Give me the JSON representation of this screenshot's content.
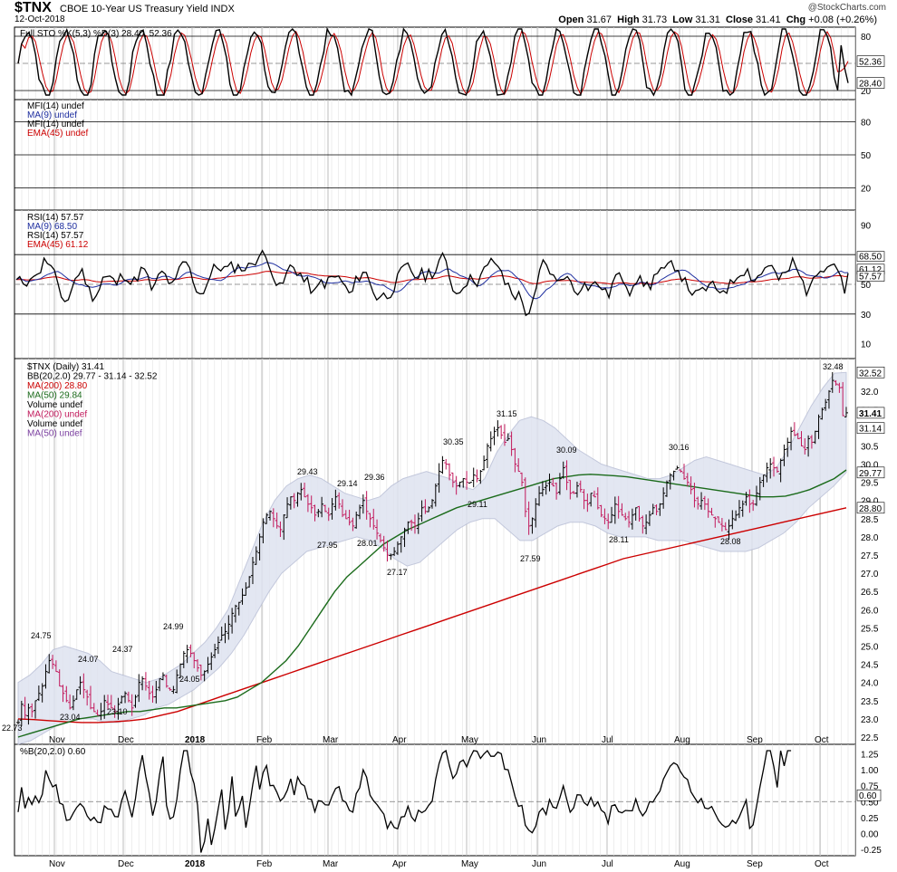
{
  "header": {
    "symbol": "$TNX",
    "name": "CBOE 10-Year US Treasury Yield  INDX",
    "date": "12-Oct-2018",
    "copyright": "@StockCharts.com",
    "open_label": "Open",
    "open": "31.67",
    "high_label": "High",
    "high": "31.73",
    "low_label": "Low",
    "low": "31.31",
    "close_label": "Close",
    "close": "31.41",
    "chg_label": "Chg",
    "chg": "+0.08 (+0.26%)"
  },
  "colors": {
    "grid": "#cfcfcf",
    "price_up": "#000000",
    "price_down": "#c2185b",
    "ma200": "#cc0000",
    "ma50": "#1b6b1b",
    "bb_fill": "#dfe3f0",
    "bb_line": "#b9bfd6",
    "indicator": "#000000",
    "signal_red": "#cc0000",
    "ma9_blue": "#1f2fa0"
  },
  "chart_data": [
    {
      "type": "line",
      "panel": "stochastic",
      "legend": [
        "Full STO %K(5,3) %D(3) 28.40, 52.36"
      ],
      "levels": [
        80,
        20
      ],
      "ylim": [
        10,
        90
      ],
      "last_values": {
        "k": "28.40",
        "d": "52.36"
      },
      "axis_labels": [
        "80",
        "20"
      ]
    },
    {
      "type": "line",
      "panel": "mfi",
      "legend": [
        "MFI(14) undef",
        "MA(9) undef",
        "MFI(14) undef",
        "EMA(45) undef"
      ],
      "levels": [
        80,
        50,
        20
      ],
      "ylim": [
        0,
        100
      ],
      "axis_labels": [
        "80",
        "50",
        "20"
      ]
    },
    {
      "type": "line",
      "panel": "rsi",
      "legend": [
        "RSI(14) 57.57",
        "MA(9) 68.50",
        "RSI(14) 57.57",
        "EMA(45) 61.12"
      ],
      "levels": [
        70,
        50,
        30
      ],
      "ylim": [
        0,
        100
      ],
      "last_values": {
        "ma9": "68.50",
        "ema45": "61.12",
        "rsi": "57.57"
      },
      "axis_labels": [
        "90",
        "70",
        "50",
        "30",
        "10"
      ]
    },
    {
      "type": "ohlc",
      "panel": "price",
      "legend": [
        "$TNX (Daily) 31.41",
        "BB(20,2.0) 29.77 - 31.14 - 32.52",
        "MA(200) 28.80",
        "MA(50) 29.84",
        "Volume undef",
        "MA(200) undef",
        "Volume undef",
        "MA(50) undef"
      ],
      "ylim": [
        22.3,
        32.9
      ],
      "y_ticks": [
        "22.5",
        "23.0",
        "23.5",
        "24.0",
        "24.5",
        "25.0",
        "25.5",
        "26.0",
        "26.5",
        "27.0",
        "27.5",
        "28.0",
        "28.5",
        "29.0",
        "29.5",
        "30.0",
        "30.5",
        "31.0",
        "31.5",
        "32.0"
      ],
      "last_value_tags": {
        "bb_upper": "32.52",
        "close": "31.41",
        "bb_middle": "31.14",
        "bb_lower": "29.77",
        "ma200": "28.80"
      },
      "x_ticks": [
        "Nov",
        "Dec",
        "2018",
        "Feb",
        "Mar",
        "Apr",
        "May",
        "Jun",
        "Jul",
        "Aug",
        "Sep",
        "Oct"
      ],
      "annotations": [
        "22.73",
        "23.04",
        "24.75",
        "24.07",
        "23.10",
        "24.37",
        "24.99",
        "24.05",
        "29.43",
        "27.95",
        "29.14",
        "28.01",
        "29.36",
        "27.17",
        "30.35",
        "29.11",
        "31.15",
        "27.59",
        "30.09",
        "28.11",
        "30.16",
        "28.08",
        "32.48"
      ],
      "close_series": [
        22.9,
        23.4,
        23.1,
        23.3,
        23.2,
        23.5,
        23.7,
        23.9,
        24.3,
        24.6,
        24.5,
        24.3,
        23.9,
        23.7,
        23.5,
        23.3,
        23.5,
        23.8,
        24.0,
        23.8,
        23.6,
        23.3,
        23.2,
        23.1,
        23.2,
        23.5,
        23.4,
        23.3,
        23.2,
        23.4,
        23.6,
        23.7,
        23.5,
        23.3,
        23.6,
        24.0,
        24.1,
        23.9,
        23.7,
        23.6,
        23.8,
        24.1,
        24.2,
        23.9,
        23.8,
        23.8,
        24.2,
        24.5,
        24.8,
        24.9,
        24.8,
        24.6,
        24.4,
        24.2,
        24.3,
        24.5,
        24.7,
        24.9,
        25.1,
        25.3,
        25.4,
        25.6,
        25.9,
        26.1,
        26.2,
        26.4,
        26.6,
        26.9,
        27.3,
        27.6,
        28.0,
        28.4,
        28.6,
        28.7,
        28.5,
        28.3,
        28.2,
        28.6,
        28.9,
        29.1,
        29.0,
        29.2,
        29.3,
        29.1,
        28.9,
        28.8,
        28.6,
        28.7,
        28.9,
        28.7,
        28.6,
        28.9,
        29.1,
        28.9,
        28.6,
        28.5,
        28.4,
        28.3,
        28.6,
        28.8,
        29.0,
        28.7,
        28.5,
        28.3,
        28.1,
        27.9,
        27.7,
        27.5,
        27.5,
        27.6,
        27.8,
        28.0,
        28.2,
        28.4,
        28.4,
        28.3,
        28.5,
        28.8,
        28.7,
        28.8,
        29.0,
        29.4,
        29.8,
        30.1,
        30.0,
        29.7,
        29.5,
        29.4,
        29.5,
        29.6,
        29.5,
        29.5,
        29.7,
        29.6,
        29.8,
        30.1,
        30.5,
        30.7,
        30.9,
        31.0,
        30.8,
        30.6,
        30.7,
        30.4,
        30.0,
        29.8,
        29.5,
        28.7,
        28.3,
        28.5,
        28.9,
        29.2,
        29.3,
        29.4,
        29.5,
        29.4,
        29.2,
        29.6,
        29.9,
        29.5,
        29.2,
        29.2,
        29.4,
        29.3,
        29.0,
        28.9,
        29.2,
        29.1,
        28.8,
        28.6,
        28.5,
        28.4,
        28.6,
        28.9,
        28.7,
        28.6,
        28.5,
        28.4,
        28.6,
        28.8,
        28.5,
        28.3,
        28.4,
        28.6,
        28.8,
        28.7,
        28.9,
        29.2,
        29.5,
        29.7,
        29.8,
        29.9,
        29.8,
        29.6,
        29.5,
        29.3,
        29.0,
        28.9,
        29.0,
        28.9,
        28.7,
        28.6,
        28.5,
        28.4,
        28.3,
        28.2,
        28.3,
        28.5,
        28.6,
        28.8,
        28.9,
        29.1,
        28.9,
        28.9,
        29.2,
        29.5,
        29.7,
        29.9,
        30.0,
        29.9,
        29.8,
        30.1,
        30.4,
        30.6,
        30.9,
        30.8,
        30.7,
        30.5,
        30.4,
        30.7,
        30.6,
        30.9,
        31.3,
        31.5,
        31.7,
        32.0,
        32.3,
        32.2,
        32.1,
        31.33,
        31.41
      ],
      "ma50_series": [
        22.5,
        22.6,
        22.7,
        22.8,
        22.9,
        23.0,
        23.05,
        23.1,
        23.15,
        23.2,
        23.2,
        23.25,
        23.3,
        23.3,
        23.35,
        23.4,
        23.45,
        23.5,
        23.6,
        23.8,
        24.0,
        24.3,
        24.6,
        25.0,
        25.5,
        26.0,
        26.5,
        26.9,
        27.2,
        27.5,
        27.8,
        28.0,
        28.2,
        28.35,
        28.5,
        28.65,
        28.8,
        28.9,
        29.0,
        29.1,
        29.2,
        29.3,
        29.4,
        29.5,
        29.6,
        29.65,
        29.7,
        29.72,
        29.7,
        29.68,
        29.65,
        29.6,
        29.55,
        29.5,
        29.45,
        29.4,
        29.35,
        29.3,
        29.25,
        29.2,
        29.15,
        29.1,
        29.1,
        29.12,
        29.2,
        29.3,
        29.45,
        29.6,
        29.84
      ],
      "ma200_series": [
        23.0,
        22.98,
        22.95,
        22.92,
        22.9,
        22.9,
        22.92,
        22.95,
        23.0,
        23.1,
        23.2,
        23.35,
        23.5,
        23.65,
        23.8,
        23.95,
        24.1,
        24.25,
        24.4,
        24.55,
        24.7,
        24.85,
        25.0,
        25.15,
        25.3,
        25.45,
        25.6,
        25.75,
        25.9,
        26.05,
        26.2,
        26.35,
        26.5,
        26.65,
        26.8,
        26.95,
        27.1,
        27.25,
        27.4,
        27.5,
        27.6,
        27.7,
        27.8,
        27.9,
        28.0,
        28.1,
        28.2,
        28.3,
        28.4,
        28.5,
        28.6,
        28.7,
        28.8
      ],
      "bb_upper_series": [
        24.0,
        24.2,
        24.5,
        24.9,
        25.0,
        24.9,
        24.8,
        24.6,
        24.3,
        24.2,
        24.1,
        24.0,
        24.1,
        24.3,
        24.5,
        24.8,
        25.1,
        25.5,
        26.0,
        26.8,
        27.6,
        28.4,
        29.0,
        29.4,
        29.6,
        29.7,
        29.6,
        29.4,
        29.2,
        29.1,
        29.0,
        29.1,
        29.4,
        29.6,
        29.7,
        29.8,
        29.7,
        29.6,
        29.4,
        29.3,
        29.6,
        30.3,
        30.8,
        31.2,
        31.3,
        31.2,
        31.0,
        30.7,
        30.4,
        30.2,
        30.0,
        29.9,
        29.8,
        29.7,
        29.6,
        29.6,
        29.7,
        29.9,
        30.1,
        30.2,
        30.1,
        30.0,
        29.9,
        29.8,
        29.7,
        29.9,
        30.4,
        31.0,
        31.6,
        32.1,
        32.5,
        32.52
      ],
      "bb_lower_series": [
        22.3,
        22.4,
        22.6,
        22.8,
        22.9,
        23.0,
        23.0,
        22.9,
        22.9,
        23.0,
        23.1,
        23.3,
        23.4,
        23.6,
        23.8,
        24.1,
        24.4,
        24.8,
        25.3,
        25.9,
        26.5,
        27.0,
        27.3,
        27.6,
        27.7,
        27.8,
        27.9,
        28.0,
        27.9,
        27.7,
        27.4,
        27.2,
        27.3,
        27.6,
        27.9,
        28.2,
        28.4,
        28.5,
        28.5,
        28.2,
        27.9,
        27.9,
        28.1,
        28.3,
        28.4,
        28.4,
        28.3,
        28.1,
        28.0,
        28.0,
        28.0,
        27.9,
        27.9,
        27.9,
        27.8,
        27.7,
        27.6,
        27.6,
        27.6,
        27.7,
        27.9,
        28.1,
        28.4,
        28.8,
        29.1,
        29.4,
        29.77
      ]
    },
    {
      "type": "line",
      "panel": "percent_b",
      "legend": [
        "%B(20,2.0) 0.60"
      ],
      "ylim": [
        -0.35,
        1.4
      ],
      "y_ticks": [
        "1.25",
        "1.00",
        "0.75",
        "0.50",
        "0.25",
        "0.00",
        "-0.25"
      ],
      "last_value": "0.60",
      "x_ticks": [
        "Nov",
        "Dec",
        "2018",
        "Feb",
        "Mar",
        "Apr",
        "May",
        "Jun",
        "Jul",
        "Aug",
        "Sep",
        "Oct"
      ]
    }
  ]
}
